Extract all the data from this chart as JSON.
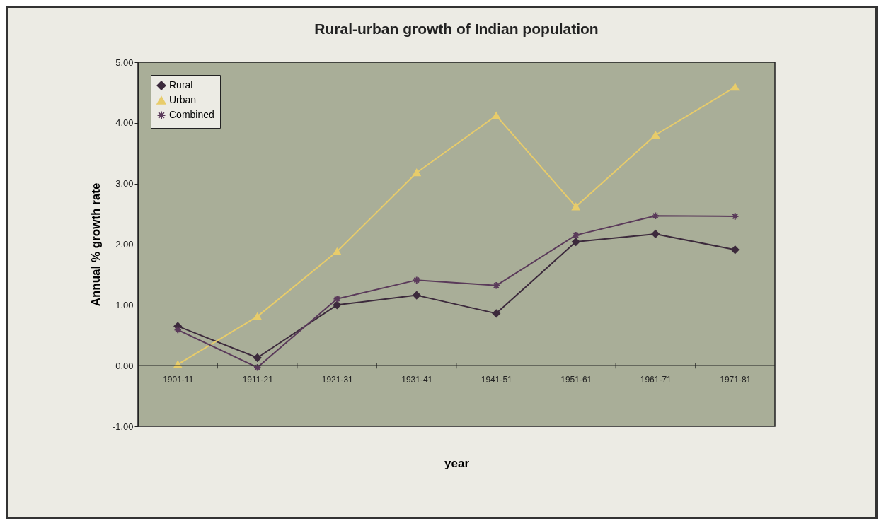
{
  "chart_data": {
    "type": "line",
    "title": "Rural-urban growth of Indian population",
    "xlabel": "year",
    "ylabel": "Annual % growth rate",
    "categories": [
      "1901-11",
      "1911-21",
      "1921-31",
      "1931-41",
      "1941-51",
      "1951-61",
      "1961-71",
      "1971-81"
    ],
    "series": [
      {
        "name": "Rural",
        "color": "#3c2a3c",
        "marker": "diamond",
        "values": [
          0.65,
          0.13,
          1.0,
          1.16,
          0.86,
          2.04,
          2.17,
          1.91
        ]
      },
      {
        "name": "Urban",
        "color": "#e8cc6a",
        "marker": "triangle",
        "values": [
          0.02,
          0.81,
          1.88,
          3.18,
          4.12,
          2.62,
          3.8,
          4.59
        ]
      },
      {
        "name": "Combined",
        "color": "#5a3a5a",
        "marker": "cross",
        "values": [
          0.59,
          -0.03,
          1.1,
          1.41,
          1.32,
          2.15,
          2.47,
          2.46
        ]
      }
    ],
    "ylim": [
      -1,
      5
    ],
    "yticks": [
      {
        "value": -1,
        "label": "-1.00"
      },
      {
        "value": 0,
        "label": "0.00"
      },
      {
        "value": 1,
        "label": "1.00"
      },
      {
        "value": 2,
        "label": "2.00"
      },
      {
        "value": 3,
        "label": "3.00"
      },
      {
        "value": 4,
        "label": "4.00"
      },
      {
        "value": 5,
        "label": "5.00"
      }
    ],
    "legend": "top left"
  }
}
